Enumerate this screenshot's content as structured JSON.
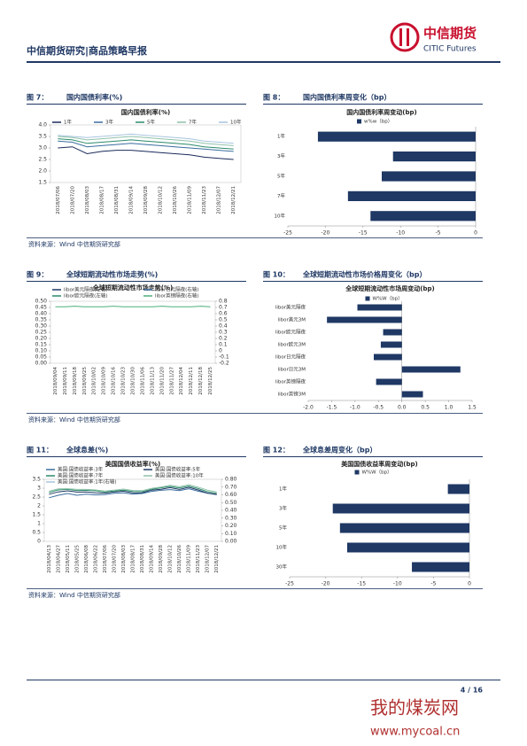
{
  "header": {
    "title": "中信期货研究|商品策略早报",
    "logo_cn": "中信期货",
    "logo_en": "CITIC Futures"
  },
  "figures": [
    {
      "label": "图 7：",
      "caption": "国内国债利率(%)"
    },
    {
      "label": "图 8：",
      "caption": "国内国债利率周变化（bp）"
    },
    {
      "label": "图 9：",
      "caption": "全球短期流动性市场走势(%)"
    },
    {
      "label": "图 10：",
      "caption": "全球短期流动性市场价格周变化（bp）"
    },
    {
      "label": "图 11：",
      "caption": "全球息差(%)"
    },
    {
      "label": "图 12：",
      "caption": "全球息差周变化（bp）"
    }
  ],
  "sources": [
    "资料来源：Wind  中信期货研究部",
    "资料来源：Wind  中信期货研究部",
    "资料来源：Wind  中信期货研究部"
  ],
  "footer": {
    "page": "4 / 16",
    "watermark_cn": "我的煤炭网",
    "watermark_url": "www.mycoal.cn"
  },
  "chart_data": [
    {
      "type": "line",
      "title": "国内国债利率(%)",
      "categories": [
        "2018/07/06",
        "2018/07/20",
        "2018/08/03",
        "2018/08/17",
        "2018/08/31",
        "2018/09/14",
        "2018/09/28",
        "2018/10/12",
        "2018/10/26",
        "2018/11/09",
        "2018/11/23",
        "2018/12/07",
        "2018/12/21"
      ],
      "series": [
        {
          "name": "1年",
          "color": "#1b2a5a",
          "values": [
            3.0,
            3.05,
            2.75,
            2.85,
            2.9,
            2.9,
            2.85,
            2.8,
            2.75,
            2.7,
            2.6,
            2.55,
            2.5
          ]
        },
        {
          "name": "3年",
          "color": "#3b6ea0",
          "values": [
            3.3,
            3.25,
            3.05,
            3.1,
            3.15,
            3.2,
            3.15,
            3.1,
            3.05,
            3.0,
            2.95,
            2.9,
            2.85
          ]
        },
        {
          "name": "5年",
          "color": "#2a8a6a",
          "values": [
            3.4,
            3.35,
            3.2,
            3.25,
            3.3,
            3.35,
            3.3,
            3.25,
            3.2,
            3.15,
            3.05,
            3.0,
            2.95
          ]
        },
        {
          "name": "7年",
          "color": "#8fc1a8",
          "values": [
            3.5,
            3.45,
            3.35,
            3.4,
            3.45,
            3.5,
            3.45,
            3.4,
            3.35,
            3.3,
            3.2,
            3.15,
            3.1
          ]
        },
        {
          "name": "10年",
          "color": "#a7c4df",
          "values": [
            3.55,
            3.5,
            3.45,
            3.5,
            3.55,
            3.6,
            3.55,
            3.5,
            3.45,
            3.4,
            3.3,
            3.25,
            3.2
          ]
        }
      ],
      "ylim": [
        1.5,
        4.0
      ],
      "yticks": [
        1.5,
        {
          "value": 2,
          "label": "2.0"
        },
        2.5,
        {
          "value": 3,
          "label": "3.0"
        },
        3.5,
        {
          "value": 4,
          "label": "4.0"
        }
      ]
    },
    {
      "type": "hbar",
      "title": "国内国债利率周变动(bp)",
      "series": [
        {
          "name": "w%w（bp）",
          "color": "#1f3864",
          "values": [
            -21,
            -11,
            -12.5,
            -17,
            -14
          ]
        }
      ],
      "categories": [
        "1年",
        "3年",
        "5年",
        "7年",
        "10年"
      ],
      "xlim": [
        -25,
        0
      ],
      "xticks": [
        -25,
        -20,
        -15,
        -10,
        -5,
        0
      ]
    },
    {
      "type": "line",
      "title": "全球短期流动性市场走势(%)",
      "categories": [
        "2018/09/04",
        "2018/09/11",
        "2018/09/18",
        "2018/09/25",
        "2018/10/02",
        "2018/10/09",
        "2018/10/16",
        "2018/10/23",
        "2018/10/30",
        "2018/11/06",
        "2018/11/13",
        "2018/11/20",
        "2018/11/27",
        "2018/12/04",
        "2018/12/11",
        "2018/12/18",
        "2018/12/25"
      ],
      "series": [
        {
          "name": "libor美元隔夜(左轴)",
          "color": "#1f3864",
          "values": [
            null,
            null,
            null,
            null,
            null,
            null,
            null,
            null,
            null,
            null,
            null,
            null,
            null,
            null,
            null,
            null,
            null
          ]
        },
        {
          "name": "libor日元隔夜(右轴)",
          "color": "#3b6ea0",
          "axis": "y2",
          "values": [
            null,
            null,
            null,
            null,
            null,
            null,
            null,
            null,
            null,
            null,
            null,
            null,
            null,
            null,
            null,
            null,
            null
          ]
        },
        {
          "name": "libor欧元隔夜(左轴)",
          "color": "#2a8a6a",
          "values": [
            null,
            null,
            null,
            null,
            null,
            null,
            null,
            null,
            null,
            null,
            null,
            null,
            null,
            null,
            null,
            null,
            null
          ]
        },
        {
          "name": "libor英镑隔夜(右轴)",
          "color": "#4caf7a",
          "axis": "y2",
          "values": [
            0.71,
            0.71,
            0.72,
            0.71,
            0.71,
            0.71,
            0.72,
            0.71,
            0.71,
            0.71,
            0.71,
            0.72,
            0.71,
            0.71,
            0.71,
            0.72,
            0.71
          ]
        }
      ],
      "ylim": [
        0,
        0.5
      ],
      "yticks": [
        {
          "value": 0,
          "label": "0.00"
        },
        {
          "value": 0.05,
          "label": "0.05"
        },
        {
          "value": 0.1,
          "label": "0.10"
        },
        {
          "value": 0.15,
          "label": "0.15"
        },
        {
          "value": 0.2,
          "label": "0.20"
        },
        {
          "value": 0.25,
          "label": "0.25"
        },
        {
          "value": 0.3,
          "label": "0.30"
        },
        {
          "value": 0.35,
          "label": "0.35"
        },
        {
          "value": 0.4,
          "label": "0.40"
        },
        {
          "value": 0.45,
          "label": "0.45"
        },
        {
          "value": 0.5,
          "label": "0.50"
        }
      ],
      "y2lim": [
        -0.2,
        0.8
      ],
      "y2ticks": [
        -0.2,
        -0.1,
        0,
        0.1,
        0.2,
        0.3,
        0.4,
        0.5,
        0.6,
        0.7,
        0.8
      ]
    },
    {
      "type": "hbar",
      "title": "全球短期流动性市场周变动(bp)",
      "series": [
        {
          "name": "W%W（bp）",
          "color": "#1f3864",
          "values": [
            -0.95,
            -1.6,
            -0.4,
            -0.45,
            -0.6,
            1.25,
            -0.55,
            0.45
          ]
        }
      ],
      "categories": [
        "libor美元隔夜",
        "libor美元3M",
        "libor欧元隔夜",
        "libor欧元3M",
        "libor日元隔夜",
        "libor日元3M",
        "libor英镑隔夜",
        "libor英镑3M"
      ],
      "xlim": [
        -2,
        1.5
      ],
      "xticks": [
        {
          "value": -2,
          "label": "-2.0"
        },
        -1.5,
        {
          "value": -1,
          "label": "-1.0"
        },
        -0.5,
        {
          "value": 0,
          "label": "0.0"
        },
        0.5,
        {
          "value": 1,
          "label": "1.0"
        },
        1.5
      ]
    },
    {
      "type": "line",
      "title": "美国国债收益率(%)",
      "categories": [
        "2018/04/13",
        "2018/04/27",
        "2018/05/11",
        "2018/05/25",
        "2018/06/08",
        "2018/06/22",
        "2018/07/06",
        "2018/07/20",
        "2018/08/03",
        "2018/08/17",
        "2018/08/31",
        "2018/09/14",
        "2018/09/28",
        "2018/10/12",
        "2018/10/26",
        "2018/11/09",
        "2018/11/23",
        "2018/12/07",
        "2018/12/21"
      ],
      "series": [
        {
          "name": "美国:国债收益率:3年",
          "color": "#3b6ea0",
          "values": [
            2.46,
            2.6,
            2.7,
            2.6,
            2.66,
            2.62,
            2.64,
            2.71,
            2.74,
            2.66,
            2.7,
            2.82,
            2.88,
            2.92,
            2.86,
            2.97,
            2.83,
            2.72,
            2.63
          ]
        },
        {
          "name": "美国:国债收益率:5年",
          "color": "#1f3864",
          "values": [
            2.66,
            2.79,
            2.85,
            2.78,
            2.79,
            2.74,
            2.72,
            2.79,
            2.83,
            2.73,
            2.74,
            2.89,
            2.94,
            3.03,
            2.93,
            3.05,
            2.9,
            2.72,
            2.65
          ]
        },
        {
          "name": "美国:国债收益率:7年",
          "color": "#2a8a6a",
          "values": [
            2.76,
            2.9,
            2.93,
            2.87,
            2.88,
            2.85,
            2.78,
            2.84,
            2.89,
            2.81,
            2.8,
            2.94,
            3.02,
            3.1,
            3.01,
            3.12,
            2.98,
            2.8,
            2.71
          ]
        },
        {
          "name": "美国:国债收益率:10年",
          "color": "#8fc1a8",
          "values": [
            2.83,
            2.96,
            2.97,
            2.93,
            2.93,
            2.9,
            2.84,
            2.89,
            2.95,
            2.87,
            2.86,
            2.99,
            3.06,
            3.16,
            3.08,
            3.19,
            3.06,
            2.89,
            2.79
          ]
        },
        {
          "name": "美国:国债收益率:1年(右轴)",
          "color": "#a7c4df",
          "axis": "y2",
          "values": [
            null,
            null,
            null,
            null,
            null,
            null,
            null,
            null,
            null,
            null,
            null,
            null,
            null,
            null,
            null,
            null,
            null,
            null,
            null
          ]
        }
      ],
      "ylim": [
        0,
        3.5
      ],
      "yticks": [
        0,
        0.5,
        1,
        1.5,
        2,
        2.5,
        3,
        3.5
      ],
      "y2lim": [
        0,
        0.8
      ],
      "y2ticks": [
        {
          "value": 0,
          "label": "0.00"
        },
        {
          "value": 0.1,
          "label": "0.10"
        },
        {
          "value": 0.2,
          "label": "0.20"
        },
        {
          "value": 0.3,
          "label": "0.30"
        },
        {
          "value": 0.4,
          "label": "0.40"
        },
        {
          "value": 0.5,
          "label": "0.50"
        },
        {
          "value": 0.6,
          "label": "0.60"
        },
        {
          "value": 0.7,
          "label": "0.70"
        },
        {
          "value": 0.8,
          "label": "0.80"
        }
      ]
    },
    {
      "type": "hbar",
      "title": "美国国债收益率周变动(bp)",
      "series": [
        {
          "name": "W%W（bp）",
          "color": "#1f3864",
          "values": [
            -3,
            -19,
            -18,
            -17,
            -8
          ]
        }
      ],
      "categories": [
        "1年",
        "3年",
        "5年",
        "10年",
        "30年"
      ],
      "xlim": [
        -25,
        0
      ],
      "xticks": [
        -25,
        -20,
        -15,
        -10,
        -5,
        0
      ]
    }
  ]
}
